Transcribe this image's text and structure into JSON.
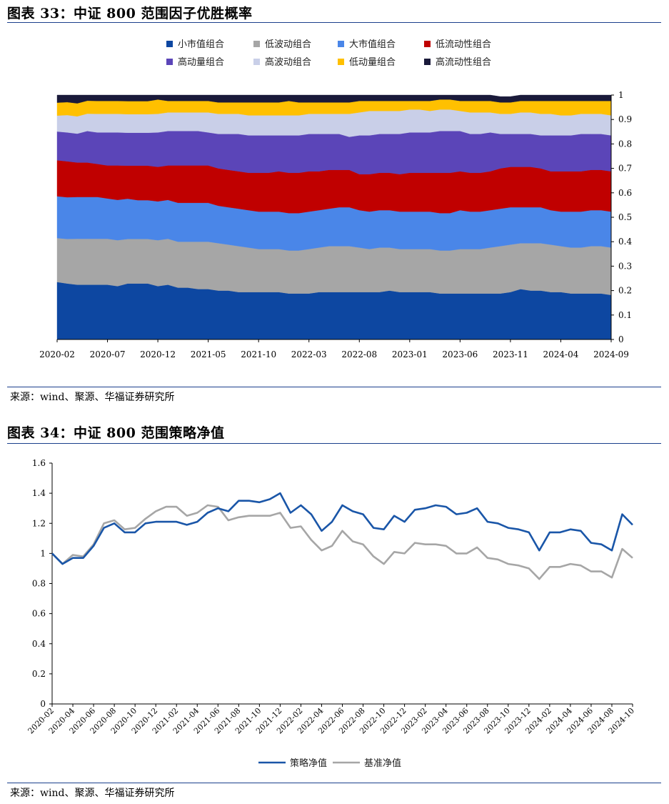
{
  "figure1": {
    "title": "图表 33：中证 800 范围因子优胜概率",
    "source": "来源：wind、聚源、华福证券研究所"
  },
  "figure2": {
    "title": "图表 34：中证 800 范围策略净值",
    "source": "来源：wind、聚源、华福证券研究所"
  },
  "chart_data": [
    {
      "type": "area",
      "stacked": true,
      "title": "",
      "xlabel": "",
      "ylabel": "",
      "ylim": [
        0,
        1
      ],
      "yticks": [
        "0",
        "0.1",
        "0.2",
        "0.3",
        "0.4",
        "0.5",
        "0.6",
        "0.7",
        "0.8",
        "0.9",
        "1"
      ],
      "y_axis_side": "right",
      "x_tick_labels": [
        "2020-02",
        "2020-07",
        "2020-12",
        "2021-05",
        "2021-10",
        "2022-03",
        "2022-08",
        "2023-01",
        "2023-06",
        "2023-11",
        "2024-04",
        "2024-09"
      ],
      "x_tick_every": 5,
      "grid": false,
      "legend_position": "top",
      "x": [
        "2020-02",
        "2020-03",
        "2020-04",
        "2020-05",
        "2020-06",
        "2020-07",
        "2020-08",
        "2020-09",
        "2020-10",
        "2020-11",
        "2020-12",
        "2021-01",
        "2021-02",
        "2021-03",
        "2021-04",
        "2021-05",
        "2021-06",
        "2021-07",
        "2021-08",
        "2021-09",
        "2021-10",
        "2021-11",
        "2021-12",
        "2022-01",
        "2022-02",
        "2022-03",
        "2022-04",
        "2022-05",
        "2022-06",
        "2022-07",
        "2022-08",
        "2022-09",
        "2022-10",
        "2022-11",
        "2022-12",
        "2023-01",
        "2023-02",
        "2023-03",
        "2023-04",
        "2023-05",
        "2023-06",
        "2023-07",
        "2023-08",
        "2023-09",
        "2023-10",
        "2023-11",
        "2023-12",
        "2024-01",
        "2024-02",
        "2024-03",
        "2024-04",
        "2024-05",
        "2024-06",
        "2024-07",
        "2024-08",
        "2024-09"
      ],
      "series": [
        {
          "name": "小市值组合",
          "color": "#0d47a1",
          "values": [
            0.235,
            0.229,
            0.224,
            0.224,
            0.224,
            0.224,
            0.218,
            0.229,
            0.229,
            0.229,
            0.218,
            0.224,
            0.212,
            0.212,
            0.206,
            0.206,
            0.2,
            0.2,
            0.194,
            0.194,
            0.194,
            0.194,
            0.194,
            0.188,
            0.188,
            0.188,
            0.194,
            0.194,
            0.194,
            0.194,
            0.194,
            0.194,
            0.194,
            0.2,
            0.194,
            0.194,
            0.194,
            0.194,
            0.188,
            0.188,
            0.188,
            0.188,
            0.188,
            0.188,
            0.188,
            0.194,
            0.206,
            0.2,
            0.2,
            0.194,
            0.194,
            0.188,
            0.188,
            0.188,
            0.188,
            0.182
          ]
        },
        {
          "name": "低波动组合",
          "color": "#a6a6a6",
          "values": [
            0.18,
            0.182,
            0.188,
            0.188,
            0.188,
            0.188,
            0.188,
            0.182,
            0.182,
            0.182,
            0.188,
            0.188,
            0.188,
            0.188,
            0.194,
            0.194,
            0.194,
            0.188,
            0.188,
            0.182,
            0.176,
            0.176,
            0.176,
            0.176,
            0.176,
            0.182,
            0.182,
            0.188,
            0.188,
            0.188,
            0.182,
            0.176,
            0.182,
            0.176,
            0.176,
            0.176,
            0.176,
            0.176,
            0.176,
            0.176,
            0.182,
            0.182,
            0.182,
            0.188,
            0.194,
            0.194,
            0.188,
            0.194,
            0.194,
            0.194,
            0.188,
            0.188,
            0.188,
            0.194,
            0.194,
            0.194
          ]
        },
        {
          "name": "大市值组合",
          "color": "#4a86e8",
          "values": [
            0.171,
            0.171,
            0.171,
            0.171,
            0.171,
            0.165,
            0.165,
            0.165,
            0.159,
            0.159,
            0.159,
            0.159,
            0.159,
            0.159,
            0.159,
            0.159,
            0.153,
            0.153,
            0.153,
            0.153,
            0.153,
            0.153,
            0.153,
            0.153,
            0.153,
            0.153,
            0.153,
            0.153,
            0.159,
            0.159,
            0.153,
            0.153,
            0.153,
            0.153,
            0.153,
            0.153,
            0.153,
            0.153,
            0.153,
            0.153,
            0.159,
            0.153,
            0.153,
            0.153,
            0.153,
            0.153,
            0.147,
            0.147,
            0.147,
            0.141,
            0.141,
            0.147,
            0.147,
            0.147,
            0.147,
            0.147
          ]
        },
        {
          "name": "低流动性组合",
          "color": "#c00000",
          "values": [
            0.147,
            0.147,
            0.141,
            0.141,
            0.135,
            0.135,
            0.141,
            0.135,
            0.141,
            0.141,
            0.141,
            0.141,
            0.153,
            0.153,
            0.153,
            0.153,
            0.153,
            0.153,
            0.153,
            0.153,
            0.159,
            0.159,
            0.165,
            0.165,
            0.165,
            0.165,
            0.159,
            0.159,
            0.153,
            0.153,
            0.147,
            0.153,
            0.153,
            0.153,
            0.153,
            0.159,
            0.159,
            0.159,
            0.165,
            0.165,
            0.159,
            0.159,
            0.159,
            0.159,
            0.165,
            0.165,
            0.165,
            0.165,
            0.159,
            0.159,
            0.165,
            0.165,
            0.165,
            0.165,
            0.165,
            0.165
          ]
        },
        {
          "name": "高动量组合",
          "color": "#5b45b8",
          "values": [
            0.118,
            0.118,
            0.118,
            0.129,
            0.129,
            0.135,
            0.135,
            0.135,
            0.135,
            0.135,
            0.141,
            0.141,
            0.141,
            0.141,
            0.141,
            0.135,
            0.141,
            0.147,
            0.153,
            0.153,
            0.153,
            0.153,
            0.147,
            0.153,
            0.153,
            0.153,
            0.153,
            0.147,
            0.147,
            0.135,
            0.159,
            0.159,
            0.159,
            0.159,
            0.165,
            0.165,
            0.165,
            0.165,
            0.171,
            0.171,
            0.165,
            0.159,
            0.159,
            0.159,
            0.141,
            0.135,
            0.135,
            0.135,
            0.135,
            0.147,
            0.147,
            0.147,
            0.153,
            0.147,
            0.147,
            0.147
          ]
        },
        {
          "name": "高波动组合",
          "color": "#c9cfe8",
          "values": [
            0.065,
            0.071,
            0.071,
            0.071,
            0.076,
            0.076,
            0.076,
            0.076,
            0.076,
            0.076,
            0.076,
            0.076,
            0.076,
            0.076,
            0.076,
            0.082,
            0.082,
            0.082,
            0.082,
            0.082,
            0.082,
            0.082,
            0.082,
            0.082,
            0.082,
            0.082,
            0.082,
            0.082,
            0.082,
            0.094,
            0.094,
            0.1,
            0.094,
            0.094,
            0.094,
            0.094,
            0.094,
            0.088,
            0.088,
            0.088,
            0.082,
            0.088,
            0.088,
            0.082,
            0.082,
            0.082,
            0.088,
            0.088,
            0.088,
            0.088,
            0.082,
            0.082,
            0.082,
            0.082,
            0.082,
            0.082
          ]
        },
        {
          "name": "低动量组合",
          "color": "#ffc000",
          "values": [
            0.053,
            0.053,
            0.053,
            0.053,
            0.053,
            0.053,
            0.053,
            0.053,
            0.053,
            0.053,
            0.059,
            0.047,
            0.047,
            0.047,
            0.047,
            0.047,
            0.047,
            0.047,
            0.047,
            0.053,
            0.053,
            0.053,
            0.053,
            0.059,
            0.053,
            0.047,
            0.047,
            0.047,
            0.047,
            0.047,
            0.047,
            0.041,
            0.041,
            0.041,
            0.041,
            0.035,
            0.035,
            0.041,
            0.041,
            0.041,
            0.041,
            0.047,
            0.047,
            0.047,
            0.047,
            0.047,
            0.047,
            0.047,
            0.053,
            0.053,
            0.059,
            0.059,
            0.053,
            0.053,
            0.053,
            0.059
          ]
        },
        {
          "name": "高流动性组合",
          "color": "#1a1a3a",
          "values": [
            0.031,
            0.029,
            0.034,
            0.023,
            0.024,
            0.024,
            0.024,
            0.025,
            0.025,
            0.025,
            0.018,
            0.024,
            0.024,
            0.024,
            0.024,
            0.024,
            0.03,
            0.03,
            0.03,
            0.03,
            0.03,
            0.03,
            0.03,
            0.024,
            0.03,
            0.03,
            0.03,
            0.03,
            0.03,
            0.03,
            0.024,
            0.024,
            0.024,
            0.024,
            0.024,
            0.024,
            0.024,
            0.024,
            0.018,
            0.018,
            0.024,
            0.024,
            0.024,
            0.024,
            0.024,
            0.024,
            0.024,
            0.024,
            0.024,
            0.024,
            0.024,
            0.024,
            0.024,
            0.024,
            0.024,
            0.025
          ]
        }
      ]
    },
    {
      "type": "line",
      "title": "",
      "xlabel": "",
      "ylabel": "",
      "ylim": [
        0,
        1.6
      ],
      "yticks": [
        "0",
        "0.2",
        "0.4",
        "0.6",
        "0.8",
        "1",
        "1.2",
        "1.4",
        "1.6"
      ],
      "grid": false,
      "legend_position": "bottom",
      "x_tick_labels": [
        "2020-02",
        "2020-04",
        "2020-06",
        "2020-08",
        "2020-10",
        "2020-12",
        "2021-02",
        "2021-04",
        "2021-06",
        "2021-08",
        "2021-10",
        "2021-12",
        "2022-02",
        "2022-04",
        "2022-06",
        "2022-08",
        "2022-10",
        "2022-12",
        "2023-02",
        "2023-04",
        "2023-06",
        "2023-08",
        "2023-10",
        "2023-12",
        "2024-02",
        "2024-04",
        "2024-06",
        "2024-08",
        "2024-10"
      ],
      "x_tick_every": 2,
      "x": [
        "2020-02",
        "2020-03",
        "2020-04",
        "2020-05",
        "2020-06",
        "2020-07",
        "2020-08",
        "2020-09",
        "2020-10",
        "2020-11",
        "2020-12",
        "2021-01",
        "2021-02",
        "2021-03",
        "2021-04",
        "2021-05",
        "2021-06",
        "2021-07",
        "2021-08",
        "2021-09",
        "2021-10",
        "2021-11",
        "2021-12",
        "2022-01",
        "2022-02",
        "2022-03",
        "2022-04",
        "2022-05",
        "2022-06",
        "2022-07",
        "2022-08",
        "2022-09",
        "2022-10",
        "2022-11",
        "2022-12",
        "2023-01",
        "2023-02",
        "2023-03",
        "2023-04",
        "2023-05",
        "2023-06",
        "2023-07",
        "2023-08",
        "2023-09",
        "2023-10",
        "2023-11",
        "2023-12",
        "2024-01",
        "2024-02",
        "2024-03",
        "2024-04",
        "2024-05",
        "2024-06",
        "2024-07",
        "2024-08",
        "2024-09",
        "2024-10"
      ],
      "series": [
        {
          "name": "策略净值",
          "color": "#1a56a8",
          "values": [
            1.0,
            0.93,
            0.97,
            0.97,
            1.05,
            1.17,
            1.2,
            1.14,
            1.14,
            1.2,
            1.21,
            1.21,
            1.21,
            1.19,
            1.21,
            1.27,
            1.3,
            1.28,
            1.35,
            1.35,
            1.34,
            1.36,
            1.4,
            1.27,
            1.32,
            1.26,
            1.15,
            1.21,
            1.32,
            1.28,
            1.26,
            1.17,
            1.16,
            1.25,
            1.21,
            1.29,
            1.3,
            1.32,
            1.31,
            1.26,
            1.27,
            1.3,
            1.21,
            1.2,
            1.17,
            1.16,
            1.14,
            1.02,
            1.14,
            1.14,
            1.16,
            1.15,
            1.07,
            1.06,
            1.02,
            1.26,
            1.19
          ]
        },
        {
          "name": "基准净值",
          "color": "#a6a6a6",
          "values": [
            1.0,
            0.93,
            0.99,
            0.98,
            1.06,
            1.2,
            1.22,
            1.16,
            1.17,
            1.23,
            1.28,
            1.31,
            1.31,
            1.25,
            1.27,
            1.32,
            1.31,
            1.22,
            1.24,
            1.25,
            1.25,
            1.25,
            1.27,
            1.17,
            1.18,
            1.09,
            1.02,
            1.05,
            1.15,
            1.08,
            1.06,
            0.98,
            0.93,
            1.01,
            1.0,
            1.07,
            1.06,
            1.06,
            1.05,
            1.0,
            1.0,
            1.04,
            0.97,
            0.96,
            0.93,
            0.92,
            0.9,
            0.83,
            0.91,
            0.91,
            0.93,
            0.92,
            0.88,
            0.88,
            0.84,
            1.03,
            0.97
          ]
        }
      ]
    }
  ]
}
